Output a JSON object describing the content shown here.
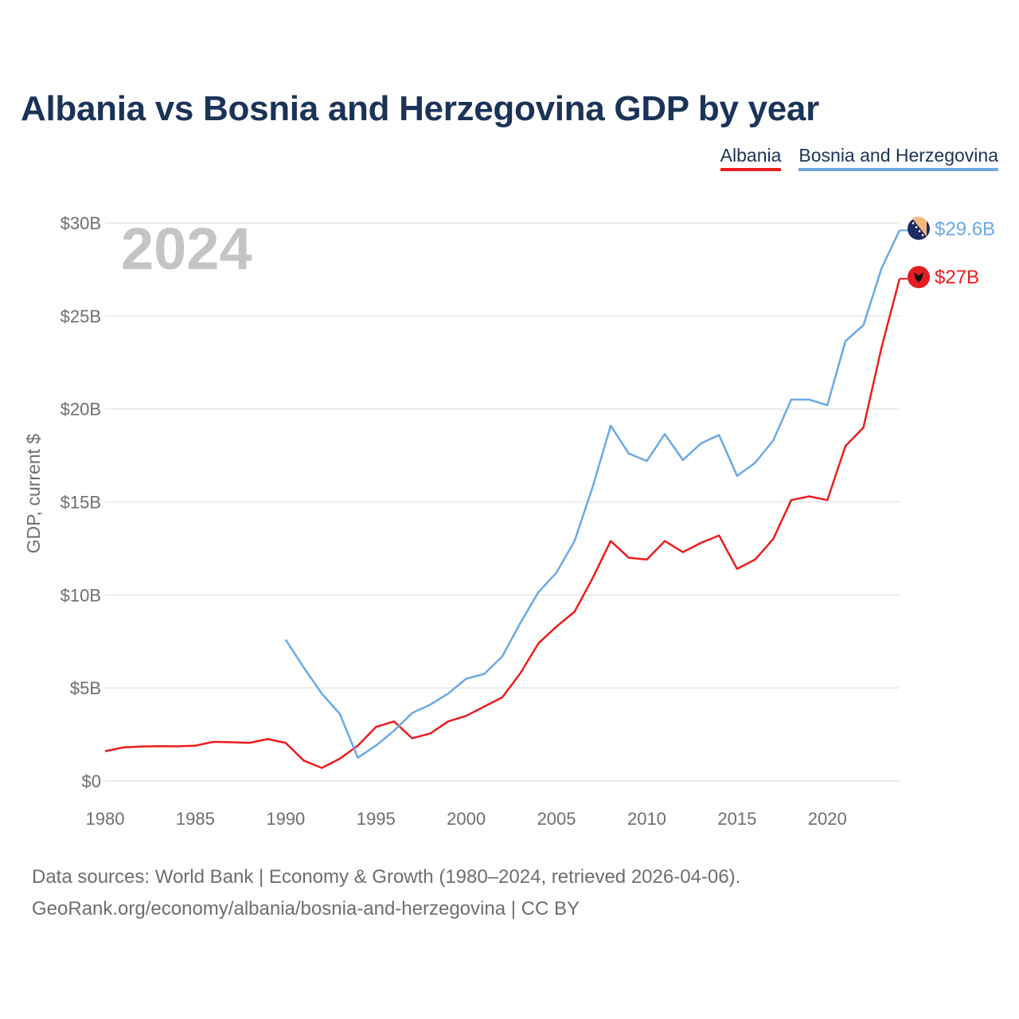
{
  "title": "Albania vs Bosnia and Herzegovina GDP by year",
  "legend": [
    "Albania",
    "Bosnia and Herzegovina"
  ],
  "year_watermark": "2024",
  "source_lines": [
    "Data sources: World Bank | Economy & Growth (1980–2024, retrieved 2026-04-06).",
    "GeoRank.org/economy/albania/bosnia-and-herzegovina | CC BY"
  ],
  "chart_data": {
    "type": "line",
    "ylabel": "GDP, current $",
    "xlabel": "",
    "xlim": [
      1980,
      2024
    ],
    "ylim": [
      0,
      30
    ],
    "x_ticks": [
      "1980",
      "1985",
      "1990",
      "1995",
      "2000",
      "2005",
      "2010",
      "2015",
      "2020"
    ],
    "x_tick_values": [
      1980,
      1985,
      1990,
      1995,
      2000,
      2005,
      2010,
      2015,
      2020
    ],
    "y_ticks": [
      "$0",
      "$5B",
      "$10B",
      "$15B",
      "$20B",
      "$25B",
      "$30B"
    ],
    "y_tick_values": [
      0,
      5,
      10,
      15,
      20,
      25,
      30
    ],
    "grid": true,
    "legend_position": "top-right",
    "series": [
      {
        "name": "Albania",
        "color": "#ee1c1c",
        "end_label": "$27B",
        "end_icon": "albania-flag-icon",
        "x": [
          1980,
          1981,
          1982,
          1983,
          1984,
          1985,
          1986,
          1987,
          1988,
          1989,
          1990,
          1991,
          1992,
          1993,
          1994,
          1995,
          1996,
          1997,
          1998,
          1999,
          2000,
          2001,
          2002,
          2003,
          2004,
          2005,
          2006,
          2007,
          2008,
          2009,
          2010,
          2011,
          2012,
          2013,
          2014,
          2015,
          2016,
          2017,
          2018,
          2019,
          2020,
          2021,
          2022,
          2023,
          2024
        ],
        "values": [
          1.6,
          1.8,
          1.85,
          1.87,
          1.86,
          1.9,
          2.1,
          2.08,
          2.05,
          2.25,
          2.05,
          1.1,
          0.7,
          1.2,
          1.9,
          2.9,
          3.2,
          2.3,
          2.55,
          3.2,
          3.5,
          4.0,
          4.5,
          5.8,
          7.4,
          8.3,
          9.1,
          10.9,
          12.9,
          12.0,
          11.9,
          12.9,
          12.3,
          12.8,
          13.2,
          11.4,
          11.9,
          13.0,
          15.1,
          15.3,
          15.1,
          18.0,
          19.0,
          23.3,
          27.0
        ]
      },
      {
        "name": "Bosnia and Herzegovina",
        "color": "#6aa9e6",
        "end_label": "$29.6B",
        "end_icon": "bosnia-flag-icon",
        "x": [
          1990,
          1991,
          1992,
          1993,
          1994,
          1995,
          1996,
          1997,
          1998,
          1999,
          2000,
          2001,
          2002,
          2003,
          2004,
          2005,
          2006,
          2007,
          2008,
          2009,
          2010,
          2011,
          2012,
          2013,
          2014,
          2015,
          2016,
          2017,
          2018,
          2019,
          2020,
          2021,
          2022,
          2023,
          2024
        ],
        "values": [
          7.6,
          6.1,
          4.7,
          3.6,
          1.25,
          1.9,
          2.7,
          3.65,
          4.1,
          4.7,
          5.5,
          5.75,
          6.7,
          8.5,
          10.15,
          11.2,
          12.9,
          15.8,
          19.1,
          17.6,
          17.2,
          18.65,
          17.25,
          18.15,
          18.6,
          16.4,
          17.1,
          18.3,
          20.5,
          20.5,
          20.2,
          23.65,
          24.5,
          27.55,
          29.6
        ]
      }
    ]
  }
}
